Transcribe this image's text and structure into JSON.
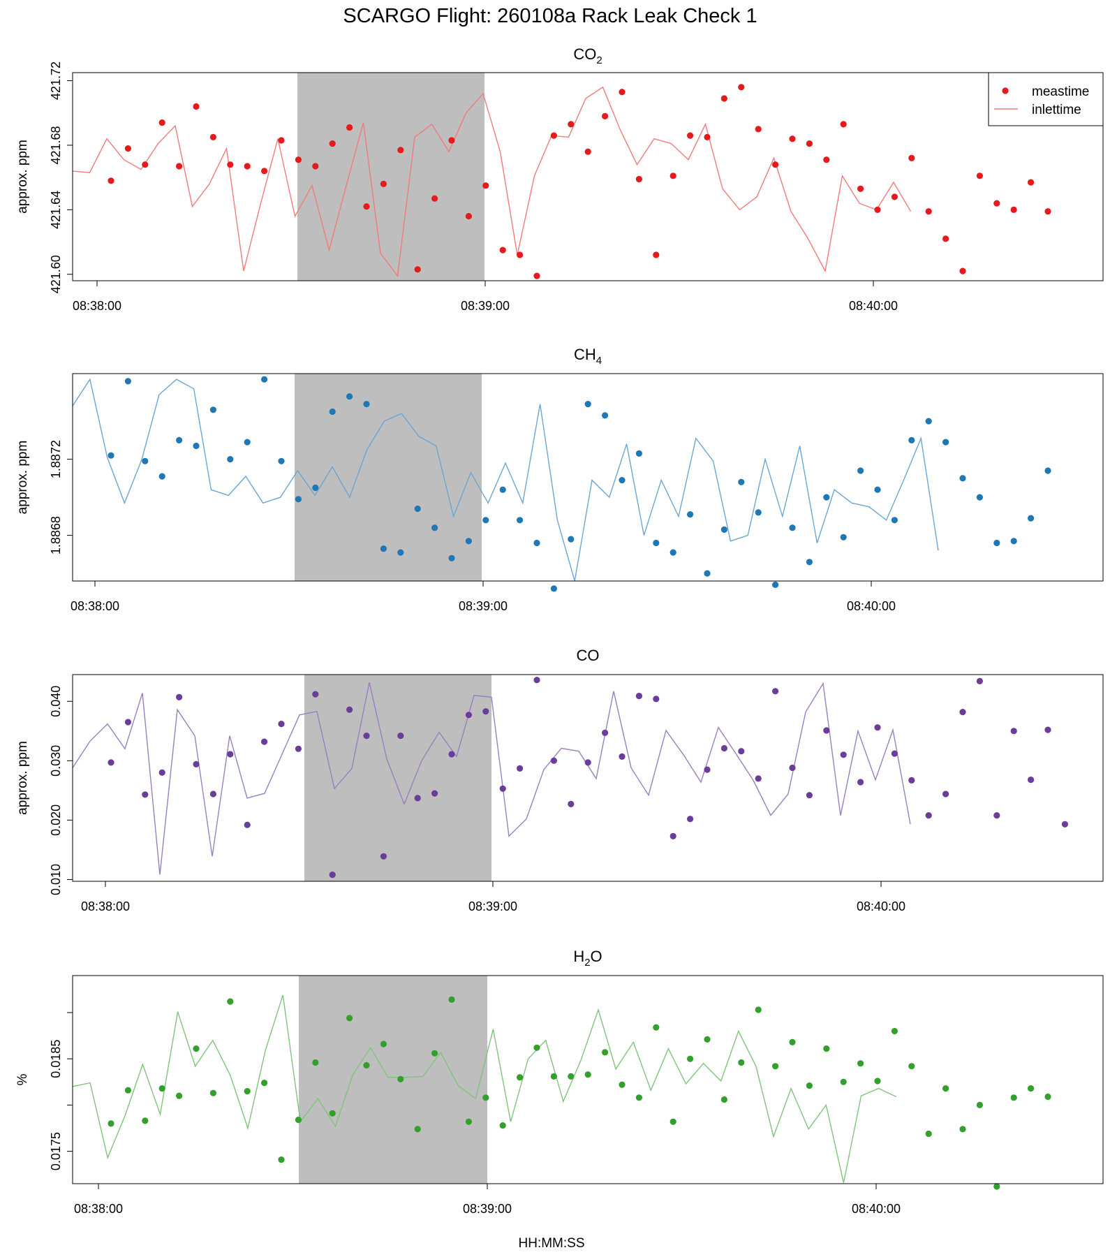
{
  "figure": {
    "title": "SCARGO Flight: 260108a  Rack Leak Check 1",
    "xlabel": "HH:MM:SS",
    "legend": {
      "position": "top-right",
      "items": [
        "meastime",
        "inlettime"
      ]
    },
    "shaded_interval": [
      "08:38:31",
      "08:39:00"
    ]
  },
  "chart_data": [
    {
      "type": "scatter+line",
      "title": "CO2",
      "title_main": "CO",
      "title_sub": "2",
      "ylabel": "approx. ppm",
      "color": "#e41a1c",
      "line_color": "#f07b7b",
      "ylim": [
        421.596,
        421.725
      ],
      "yticks": [
        421.6,
        421.64,
        421.68,
        421.72
      ],
      "ytick_labels": [
        "421.60",
        "421.64",
        "421.68",
        "421.72"
      ],
      "xticks": [
        "08:38:00",
        "08:39:00",
        "08:40:00"
      ],
      "xtick_labels": [
        "08:38:00",
        "08:39:00",
        "08:40:00"
      ],
      "points": [
        421.658,
        421.678,
        421.668,
        421.694,
        421.667,
        421.704,
        421.685,
        421.668,
        421.667,
        421.664,
        421.683,
        421.671,
        421.667,
        421.681,
        421.691,
        421.642,
        421.656,
        421.677,
        421.603,
        421.647,
        421.683,
        421.636,
        421.655,
        421.615,
        421.612,
        421.599,
        421.686,
        421.693,
        421.676,
        421.698,
        421.713,
        421.659,
        421.612,
        421.661,
        421.686,
        421.685,
        421.709,
        421.716,
        421.69,
        421.668,
        421.684,
        421.681,
        421.671,
        421.693,
        421.653,
        421.64,
        421.648,
        421.672,
        421.639,
        421.622,
        421.602,
        421.661,
        421.644,
        421.64,
        421.657,
        421.639
      ],
      "line": [
        421.664,
        421.663,
        421.684,
        421.671,
        421.665,
        421.681,
        421.692,
        421.642,
        421.656,
        421.678,
        421.602,
        421.644,
        421.684,
        421.636,
        421.655,
        421.615,
        421.655,
        421.694,
        421.613,
        421.599,
        421.685,
        421.693,
        421.676,
        421.7,
        421.712,
        421.676,
        421.612,
        421.661,
        421.686,
        421.685,
        421.709,
        421.716,
        421.69,
        421.668,
        421.684,
        421.681,
        421.671,
        421.693,
        421.653,
        421.64,
        421.648,
        421.672,
        421.639,
        421.622,
        421.602,
        421.661,
        421.644,
        421.64,
        421.657,
        421.639
      ]
    },
    {
      "type": "scatter+line",
      "title": "CH4",
      "title_main": "CH",
      "title_sub": "4",
      "ylabel": "approx. ppm",
      "color": "#1f78b4",
      "line_color": "#6aa6d3",
      "ylim": [
        1.88656,
        1.88765
      ],
      "yticks": [
        1.8868,
        1.8872
      ],
      "ytick_labels": [
        "1.8868",
        "1.8872"
      ],
      "xticks": [
        "08:38:00",
        "08:39:00",
        "08:40:00"
      ],
      "xtick_labels": [
        "08:38:00",
        "08:39:00",
        "08:40:00"
      ],
      "points": [
        1.88722,
        1.88761,
        1.88719,
        1.88711,
        1.8873,
        1.88727,
        1.88746,
        1.8872,
        1.88729,
        1.88762,
        1.88719,
        1.88699,
        1.88705,
        1.88745,
        1.88753,
        1.88749,
        1.88673,
        1.88671,
        1.88694,
        1.88684,
        1.88668,
        1.88677,
        1.88688,
        1.88704,
        1.88688,
        1.88676,
        1.88652,
        1.88678,
        1.88749,
        1.88743,
        1.88709,
        1.88723,
        1.88676,
        1.88671,
        1.88691,
        1.8866,
        1.88683,
        1.88708,
        1.88692,
        1.88654,
        1.88684,
        1.88666,
        1.887,
        1.88679,
        1.88714,
        1.88704,
        1.88688,
        1.8873,
        1.8874,
        1.88729,
        1.8871,
        1.887,
        1.88676,
        1.88677,
        1.88689,
        1.88714
      ],
      "line": [
        1.88748,
        1.88762,
        1.88721,
        1.88697,
        1.8872,
        1.88754,
        1.88762,
        1.88757,
        1.88704,
        1.88701,
        1.88711,
        1.88697,
        1.887,
        1.88714,
        1.88701,
        1.88716,
        1.887,
        1.88725,
        1.8874,
        1.88744,
        1.88732,
        1.88727,
        1.8869,
        1.88713,
        1.88697,
        1.88718,
        1.88697,
        1.88749,
        1.88688,
        1.88656,
        1.88709,
        1.887,
        1.88728,
        1.8868,
        1.88709,
        1.8869,
        1.88731,
        1.88719,
        1.88677,
        1.8868,
        1.8872,
        1.8869,
        1.88727,
        1.88676,
        1.88704,
        1.88697,
        1.88695,
        1.88688,
        1.88709,
        1.88731,
        1.88672
      ]
    },
    {
      "type": "scatter+line",
      "title": "CO",
      "title_main": "CO",
      "title_sub": "",
      "ylabel": "approx. ppm",
      "color": "#6a3d9a",
      "line_color": "#9a7fc0",
      "ylim": [
        0.0097,
        0.0445
      ],
      "yticks": [
        0.01,
        0.02,
        0.03,
        0.04
      ],
      "ytick_labels": [
        "0.010",
        "0.020",
        "0.030",
        "0.040"
      ],
      "xticks": [
        "08:38:00",
        "08:39:00",
        "08:40:00"
      ],
      "xtick_labels": [
        "08:38:00",
        "08:39:00",
        "08:40:00"
      ],
      "points": [
        0.0297,
        0.0365,
        0.0243,
        0.028,
        0.0407,
        0.0294,
        0.0244,
        0.0311,
        0.0192,
        0.0332,
        0.0362,
        0.032,
        0.0412,
        0.0108,
        0.0386,
        0.0342,
        0.0139,
        0.0342,
        0.0237,
        0.0245,
        0.0311,
        0.0377,
        0.0383,
        0.0253,
        0.0287,
        0.0436,
        0.03,
        0.0227,
        0.0297,
        0.0347,
        0.0307,
        0.0409,
        0.0404,
        0.0173,
        0.0202,
        0.0285,
        0.0321,
        0.0316,
        0.027,
        0.0417,
        0.0288,
        0.0242,
        0.0351,
        0.031,
        0.0264,
        0.0356,
        0.0312,
        0.0267,
        0.0208,
        0.0244,
        0.0382,
        0.0434,
        0.0208,
        0.035,
        0.0268,
        0.0352,
        0.0193
      ],
      "line": [
        0.0288,
        0.0333,
        0.0362,
        0.032,
        0.0414,
        0.0108,
        0.0386,
        0.0342,
        0.0139,
        0.0342,
        0.0237,
        0.0245,
        0.0311,
        0.0377,
        0.0383,
        0.0253,
        0.0287,
        0.0432,
        0.0303,
        0.0227,
        0.03,
        0.0348,
        0.0307,
        0.041,
        0.0407,
        0.0173,
        0.0202,
        0.0285,
        0.0321,
        0.0316,
        0.027,
        0.0417,
        0.0288,
        0.0242,
        0.0351,
        0.031,
        0.0264,
        0.0356,
        0.0312,
        0.0267,
        0.0208,
        0.0244,
        0.0382,
        0.043,
        0.0208,
        0.035,
        0.0268,
        0.0352,
        0.0193
      ]
    },
    {
      "type": "scatter+line",
      "title": "H2O",
      "title_main": "H",
      "title_sub": "2",
      "title_suffix": "O",
      "ylabel": "%",
      "color": "#33a02c",
      "line_color": "#7fc47a",
      "ylim": [
        0.01715,
        0.0194
      ],
      "yticks": [
        0.0175,
        0.018,
        0.0185,
        0.019
      ],
      "ytick_labels": [
        "0.0175",
        "",
        "0.0185",
        ""
      ],
      "xticks": [
        "08:38:00",
        "08:39:00",
        "08:40:00"
      ],
      "xtick_labels": [
        "08:38:00",
        "08:39:00",
        "08:40:00"
      ],
      "points": [
        0.0178,
        0.01816,
        0.01783,
        0.01818,
        0.0181,
        0.01861,
        0.01813,
        0.01912,
        0.01815,
        0.01824,
        0.01741,
        0.01784,
        0.01846,
        0.01791,
        0.01894,
        0.01843,
        0.01866,
        0.01828,
        0.01774,
        0.01856,
        0.01914,
        0.01782,
        0.01808,
        0.01778,
        0.0183,
        0.01862,
        0.01831,
        0.01831,
        0.01833,
        0.01857,
        0.01822,
        0.01808,
        0.01884,
        0.01782,
        0.0185,
        0.01871,
        0.01806,
        0.01846,
        0.01903,
        0.01842,
        0.01868,
        0.01821,
        0.01861,
        0.01825,
        0.01845,
        0.01826,
        0.0188,
        0.01842,
        0.01769,
        0.01818,
        0.01774,
        0.018,
        0.01712,
        0.01808,
        0.01818,
        0.01809
      ],
      "line": [
        0.0182,
        0.01824,
        0.01743,
        0.01789,
        0.01844,
        0.0179,
        0.01901,
        0.01842,
        0.0187,
        0.01832,
        0.01775,
        0.01859,
        0.01919,
        0.01782,
        0.01807,
        0.01777,
        0.01833,
        0.01862,
        0.0183,
        0.0183,
        0.01831,
        0.01857,
        0.01821,
        0.01807,
        0.01882,
        0.01782,
        0.0185,
        0.0187,
        0.01804,
        0.01848,
        0.01903,
        0.01839,
        0.01868,
        0.01816,
        0.01861,
        0.01823,
        0.01845,
        0.01826,
        0.0188,
        0.01842,
        0.01766,
        0.01818,
        0.01774,
        0.018,
        0.01716,
        0.0181,
        0.01818,
        0.01809
      ]
    }
  ]
}
